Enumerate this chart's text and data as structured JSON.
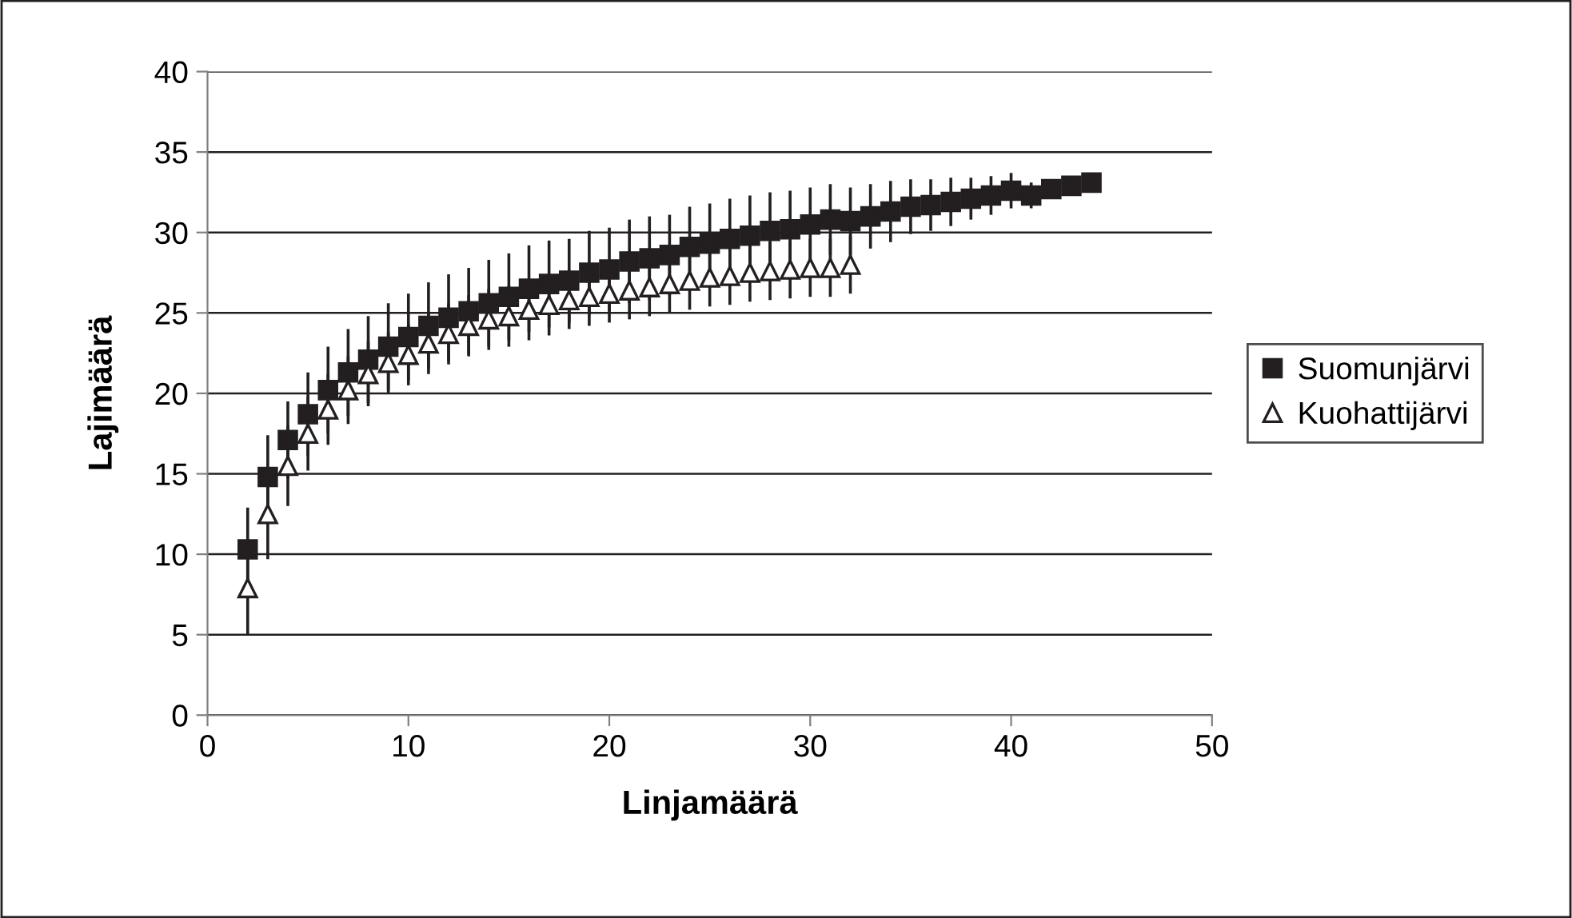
{
  "chart_data": {
    "type": "scatter",
    "xlabel": "Linjamäärä",
    "ylabel": "Lajimäärä",
    "xlim": [
      0,
      50
    ],
    "xticks": [
      0,
      10,
      20,
      30,
      40,
      50
    ],
    "ylim": [
      0,
      40
    ],
    "yticks": [
      0,
      5,
      10,
      15,
      20,
      25,
      30,
      35,
      40
    ],
    "grid": "y",
    "legend": "right",
    "series": [
      {
        "name": "Suomunjärvi",
        "color": "#231f20",
        "marker": "square",
        "x": [
          2,
          3,
          4,
          5,
          6,
          7,
          8,
          9,
          10,
          11,
          12,
          13,
          14,
          15,
          16,
          17,
          18,
          19,
          20,
          21,
          22,
          23,
          24,
          25,
          26,
          27,
          28,
          29,
          30,
          31,
          32,
          33,
          34,
          35,
          36,
          37,
          38,
          39,
          40,
          41,
          42,
          43,
          44
        ],
        "values": [
          10.3,
          14.8,
          17.1,
          18.7,
          20.2,
          21.3,
          22.1,
          22.9,
          23.5,
          24.2,
          24.7,
          25.1,
          25.6,
          26.0,
          26.5,
          26.8,
          27.0,
          27.5,
          27.7,
          28.2,
          28.4,
          28.6,
          29.1,
          29.3,
          29.6,
          29.8,
          30.1,
          30.2,
          30.5,
          30.8,
          30.7,
          31.0,
          31.3,
          31.6,
          31.7,
          31.9,
          32.1,
          32.3,
          32.6,
          32.3,
          32.7,
          32.9,
          33.1
        ],
        "errors": [
          2.6,
          2.6,
          2.4,
          2.6,
          2.7,
          2.7,
          2.7,
          2.7,
          2.7,
          2.7,
          2.7,
          2.7,
          2.7,
          2.7,
          2.7,
          2.7,
          2.6,
          2.6,
          2.6,
          2.6,
          2.6,
          2.5,
          2.5,
          2.5,
          2.5,
          2.5,
          2.4,
          2.4,
          2.3,
          2.2,
          2.1,
          2.0,
          1.9,
          1.7,
          1.6,
          1.5,
          1.3,
          1.2,
          1.1,
          0.8,
          0.5,
          null,
          null
        ]
      },
      {
        "name": "Kuohattijärvi",
        "color": "#231f20",
        "marker": "triangle",
        "x": [
          2,
          3,
          4,
          5,
          6,
          7,
          8,
          9,
          10,
          11,
          12,
          13,
          14,
          15,
          16,
          17,
          18,
          19,
          20,
          21,
          22,
          23,
          24,
          25,
          26,
          27,
          28,
          29,
          30,
          31,
          32
        ],
        "values": [
          7.9,
          12.5,
          15.5,
          17.5,
          19.0,
          20.2,
          21.2,
          21.9,
          22.4,
          23.1,
          23.7,
          24.2,
          24.6,
          24.8,
          25.2,
          25.5,
          25.8,
          26.0,
          26.2,
          26.4,
          26.6,
          26.8,
          27.0,
          27.2,
          27.3,
          27.5,
          27.6,
          27.7,
          27.8,
          27.8,
          28.0
        ],
        "errors": [
          2.9,
          2.8,
          2.5,
          2.3,
          2.2,
          2.1,
          2.0,
          1.9,
          1.9,
          1.9,
          1.9,
          1.9,
          1.9,
          1.9,
          1.9,
          1.9,
          1.8,
          1.8,
          1.8,
          1.8,
          1.8,
          1.8,
          1.8,
          1.8,
          1.8,
          1.8,
          1.8,
          1.8,
          1.8,
          1.8,
          1.8
        ]
      }
    ]
  }
}
